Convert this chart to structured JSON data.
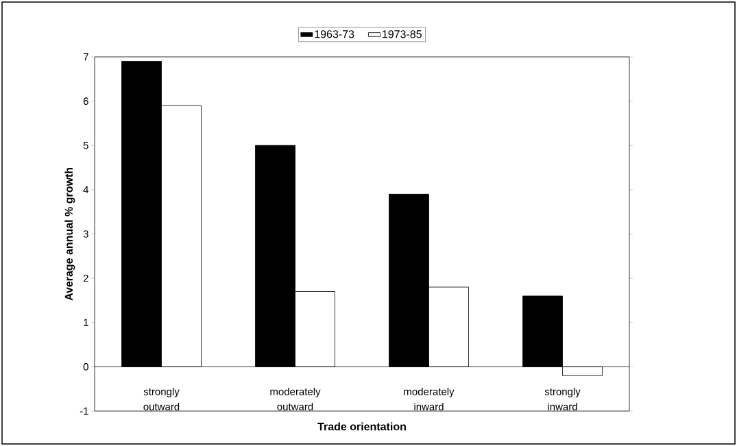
{
  "chart_data": {
    "type": "bar",
    "xlabel": "Trade orientation",
    "ylabel": "Average annual % growth",
    "categories": [
      "strongly outward",
      "moderately outward",
      "moderately inward",
      "strongly inward"
    ],
    "series": [
      {
        "name": "1963-73",
        "color": "#000000",
        "values": [
          6.9,
          5.0,
          3.9,
          1.6
        ]
      },
      {
        "name": "1973-85",
        "color": "#ffffff",
        "values": [
          5.9,
          1.7,
          1.8,
          -0.2
        ]
      }
    ],
    "ylim": [
      -1,
      7
    ],
    "yticks": [
      -1,
      0,
      1,
      2,
      3,
      4,
      5,
      6,
      7
    ],
    "grid": false,
    "legend": "top"
  }
}
